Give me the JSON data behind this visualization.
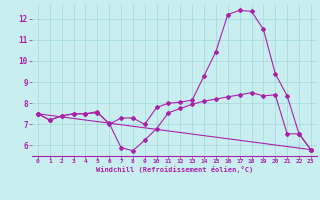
{
  "xlabel": "Windchill (Refroidissement éolien,°C)",
  "background_color": "#c8eef0",
  "grid_color": "#a0d8dc",
  "line_color": "#aa22aa",
  "xlim": [
    -0.5,
    23.5
  ],
  "ylim": [
    5.5,
    12.7
  ],
  "yticks": [
    6,
    7,
    8,
    9,
    10,
    11,
    12
  ],
  "xticks": [
    0,
    1,
    2,
    3,
    4,
    5,
    6,
    7,
    8,
    9,
    10,
    11,
    12,
    13,
    14,
    15,
    16,
    17,
    18,
    19,
    20,
    21,
    22,
    23
  ],
  "curve1_x": [
    0,
    1,
    2,
    3,
    4,
    5,
    6,
    7,
    8,
    9,
    10,
    11,
    12,
    13,
    14,
    15,
    16,
    17,
    18,
    19,
    20,
    21,
    22,
    23
  ],
  "curve1_y": [
    7.5,
    7.2,
    7.4,
    7.5,
    7.5,
    7.55,
    7.05,
    5.9,
    5.75,
    6.25,
    6.8,
    7.55,
    7.75,
    7.95,
    8.1,
    8.2,
    8.3,
    8.4,
    8.5,
    8.35,
    8.4,
    6.55,
    6.55,
    5.8
  ],
  "curve2_x": [
    0,
    1,
    2,
    3,
    4,
    5,
    6,
    7,
    8,
    9,
    10,
    11,
    12,
    13,
    14,
    15,
    16,
    17,
    18,
    19,
    20,
    21,
    22,
    23
  ],
  "curve2_y": [
    7.5,
    7.2,
    7.4,
    7.5,
    7.5,
    7.6,
    7.0,
    7.3,
    7.3,
    7.0,
    7.8,
    8.0,
    8.05,
    8.15,
    9.3,
    10.45,
    12.2,
    12.4,
    12.35,
    11.5,
    9.4,
    8.35,
    6.55,
    5.8
  ],
  "curve3_x": [
    0,
    23
  ],
  "curve3_y": [
    7.5,
    5.8
  ]
}
